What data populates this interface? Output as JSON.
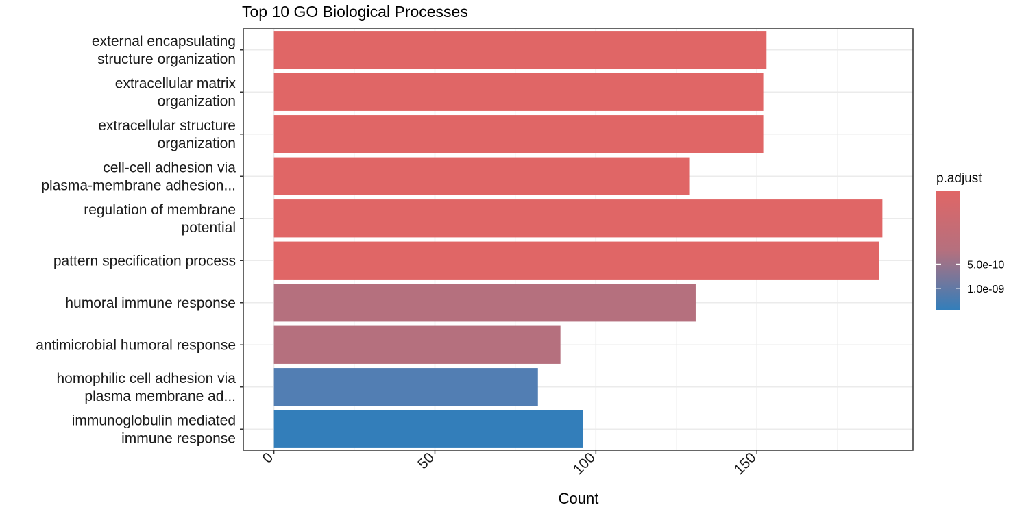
{
  "chart_data": {
    "type": "bar",
    "orientation": "horizontal",
    "title": "Top 10 GO Biological Processes",
    "xlabel": "Count",
    "ylabel": "",
    "xlim": [
      -9.5,
      198.5
    ],
    "xticks": [
      0,
      50,
      100,
      150
    ],
    "grid": true,
    "categories": [
      [
        "external encapsulating",
        "structure organization"
      ],
      [
        "extracellular matrix",
        "organization"
      ],
      [
        "extracellular structure",
        "organization"
      ],
      [
        "cell-cell adhesion via",
        "plasma-membrane adhesion..."
      ],
      [
        "regulation of membrane",
        "potential"
      ],
      [
        "pattern specification process"
      ],
      [
        "humoral immune response"
      ],
      [
        "antimicrobial humoral response"
      ],
      [
        "homophilic cell adhesion via",
        "plasma membrane ad..."
      ],
      [
        "immunoglobulin mediated",
        "immune response"
      ]
    ],
    "values": [
      153,
      152,
      152,
      129,
      189,
      188,
      131,
      89,
      82,
      96
    ],
    "colors": [
      "#E06666",
      "#E06666",
      "#E06666",
      "#E06666",
      "#E06666",
      "#E06666",
      "#B5707E",
      "#B5707E",
      "#527EB3",
      "#337EBA"
    ],
    "legend": {
      "title": "p.adjust",
      "placement": "right",
      "ticks": [
        "5.0e-10",
        "1.0e-09"
      ],
      "tick_fractions": [
        0.615,
        0.82
      ],
      "gradient": [
        "#E06666",
        "#B5707E",
        "#337EBA"
      ]
    }
  }
}
